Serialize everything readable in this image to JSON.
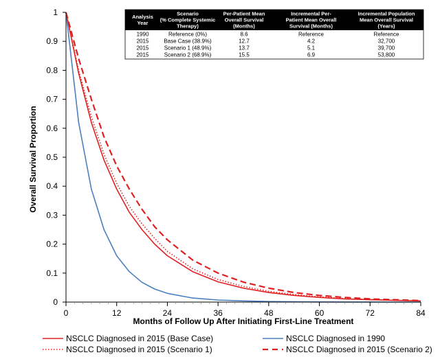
{
  "chart_data": {
    "type": "line",
    "xlabel": "Months of Follow Up After Initiating First-Line Treatment",
    "ylabel": "Overall Survival Proportion",
    "xlim": [
      0,
      84
    ],
    "ylim": [
      0,
      1
    ],
    "x_ticks": [
      0,
      12,
      24,
      36,
      48,
      60,
      72,
      84
    ],
    "y_ticks": [
      0,
      0.1,
      0.2,
      0.3,
      0.4,
      0.5,
      0.6,
      0.7,
      0.8,
      0.9,
      1
    ],
    "grid": false,
    "legend_position": "bottom",
    "series": [
      {
        "name": "NSCLC Diagnosed in 2015 (Base Case)",
        "color": "#e02020",
        "style": "solid",
        "x": [
          0,
          3,
          6,
          9,
          12,
          15,
          18,
          21,
          24,
          30,
          36,
          42,
          48,
          54,
          60,
          66,
          72,
          78,
          84
        ],
        "y": [
          1.0,
          0.79,
          0.62,
          0.49,
          0.39,
          0.31,
          0.25,
          0.2,
          0.16,
          0.105,
          0.07,
          0.048,
          0.033,
          0.023,
          0.016,
          0.011,
          0.008,
          0.006,
          0.004
        ]
      },
      {
        "name": "NSCLC Diagnosed in 2015 (Scenario 1)",
        "color": "#e02020",
        "style": "dotted",
        "x": [
          0,
          3,
          6,
          9,
          12,
          15,
          18,
          21,
          24,
          30,
          36,
          42,
          48,
          54,
          60,
          66,
          72,
          78,
          84
        ],
        "y": [
          1.0,
          0.8,
          0.64,
          0.51,
          0.41,
          0.33,
          0.27,
          0.22,
          0.175,
          0.115,
          0.078,
          0.054,
          0.037,
          0.026,
          0.018,
          0.012,
          0.009,
          0.006,
          0.004
        ]
      },
      {
        "name": "NSCLC Diagnosed in 1990",
        "color": "#4a7fc0",
        "style": "solid",
        "x": [
          0,
          3,
          6,
          9,
          12,
          15,
          18,
          21,
          24,
          30,
          36,
          42,
          48,
          54,
          60,
          66,
          72,
          78,
          84
        ],
        "y": [
          1.0,
          0.62,
          0.39,
          0.25,
          0.16,
          0.105,
          0.068,
          0.045,
          0.03,
          0.014,
          0.007,
          0.004,
          0.002,
          0.001,
          0.0005,
          0.0003,
          0.0002,
          0.0001,
          0.0
        ]
      },
      {
        "name": "NSCLC Diagnosed in 2015 (Scenario 2)",
        "color": "#e02020",
        "style": "dashed",
        "x": [
          0,
          3,
          6,
          9,
          12,
          15,
          18,
          21,
          24,
          30,
          36,
          42,
          48,
          54,
          60,
          66,
          72,
          78,
          84
        ],
        "y": [
          1.0,
          0.84,
          0.7,
          0.57,
          0.47,
          0.39,
          0.32,
          0.26,
          0.215,
          0.145,
          0.1,
          0.069,
          0.048,
          0.033,
          0.023,
          0.016,
          0.011,
          0.008,
          0.005
        ]
      }
    ],
    "table": {
      "headers": [
        [
          "Analysis",
          "Year"
        ],
        [
          "Scenario",
          "(% Complete Systemic",
          "Therapy)"
        ],
        [
          "Per-Patient Mean",
          "Overall Survival",
          "(Months)"
        ],
        [
          "Incremental Per-",
          "Patient Mean Overall",
          "Survival (Months)"
        ],
        [
          "Incremental Population",
          "Mean Overall Survival",
          "(Years)"
        ]
      ],
      "rows": [
        [
          "1990",
          "Reference (0%)",
          "8.6",
          "Reference",
          "Reference"
        ],
        [
          "2015",
          "Base Case (38.9%)",
          "12.7",
          "4.2",
          "32,700"
        ],
        [
          "2015",
          "Scenario 1 (48.9%)",
          "13.7",
          "5.1",
          "39,700"
        ],
        [
          "2015",
          "Scenario 2 (68.9%)",
          "15.5",
          "6.9",
          "53,800"
        ]
      ]
    }
  }
}
